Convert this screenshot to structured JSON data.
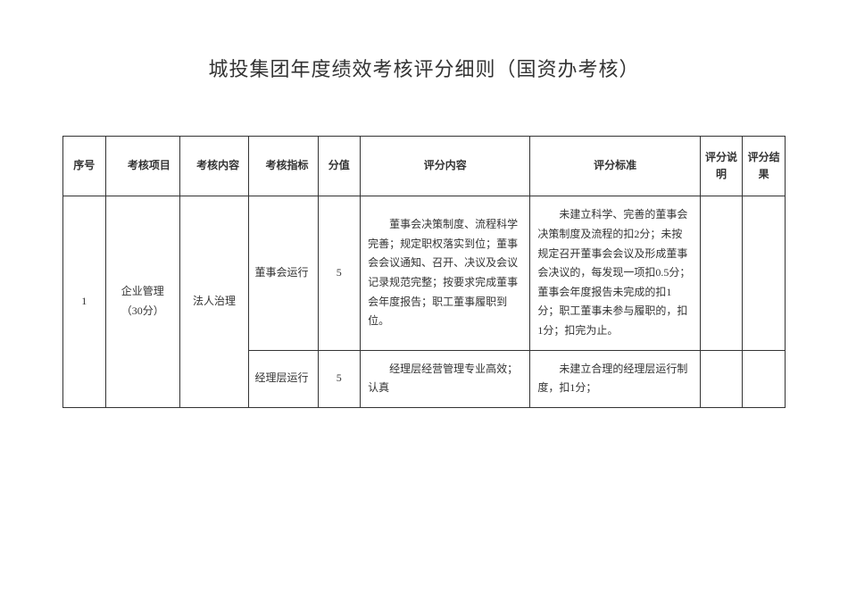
{
  "title": "城投集团年度绩效考核评分细则（国资办考核）",
  "table": {
    "headers": {
      "seq": "序号",
      "project": "考核项目",
      "content": "考核内容",
      "index": "考核指标",
      "score": "分值",
      "desc": "评分内容",
      "standard": "评分标准",
      "explain": "评分说明",
      "result": "评分结果"
    },
    "rows": [
      {
        "seq": "1",
        "project": "企业管理（30分）",
        "content": "法人治理",
        "index": "董事会运行",
        "score": "5",
        "desc": "董事会决策制度、流程科学完善；规定职权落实到位；董事会会议通知、召开、决议及会议记录规范完整；按要求完成董事会年度报告；职工董事履职到位。",
        "standard": "未建立科学、完善的董事会决策制度及流程的扣2分；未按规定召开董事会会议及形成董事会决议的，每发现一项扣0.5分；董事会年度报告未完成的扣1分；职工董事未参与履职的，扣1分；扣完为止。",
        "explain": "",
        "result": ""
      },
      {
        "index2": "经理层运行",
        "score2": "5",
        "desc2": "经理层经营管理专业高效；认真",
        "standard2": "未建立合理的经理层运行制度，扣1分；",
        "explain2": "",
        "result2": ""
      }
    ]
  },
  "style": {
    "background": "#ffffff",
    "border_color": "#333333",
    "text_color": "#333333",
    "title_fontsize": 22,
    "cell_fontsize": 12
  }
}
